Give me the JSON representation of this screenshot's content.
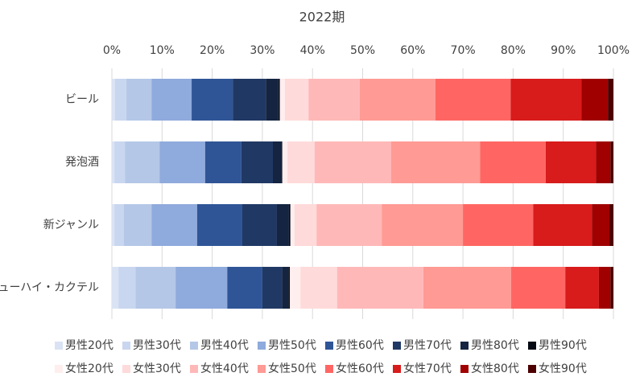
{
  "chart_data": {
    "type": "stacked_barh",
    "title": "2022期",
    "categories": [
      "ビール",
      "発泡酒",
      "新ジャンル",
      "チューハイ・カクテル"
    ],
    "xlim": [
      0,
      100
    ],
    "xticks": [
      {
        "value": 0,
        "label": "0%"
      },
      {
        "value": 10,
        "label": "10%"
      },
      {
        "value": 20,
        "label": "20%"
      },
      {
        "value": 30,
        "label": "30%"
      },
      {
        "value": 40,
        "label": "40%"
      },
      {
        "value": 50,
        "label": "50%"
      },
      {
        "value": 60,
        "label": "60%"
      },
      {
        "value": 70,
        "label": "70%"
      },
      {
        "value": 80,
        "label": "80%"
      },
      {
        "value": 90,
        "label": "90%"
      },
      {
        "value": 100,
        "label": "100%"
      }
    ],
    "grid": true,
    "legend": "bottom",
    "series": [
      {
        "name": "男性20代",
        "color": "#dae3f3",
        "values": [
          0.6,
          0.5,
          0.5,
          1.3
        ]
      },
      {
        "name": "男性30代",
        "color": "#c9d6ef",
        "values": [
          2.3,
          2.1,
          1.9,
          3.4
        ]
      },
      {
        "name": "男性40代",
        "color": "#b4c7e7",
        "values": [
          5.0,
          6.9,
          5.5,
          8.0
        ]
      },
      {
        "name": "男性50代",
        "color": "#8faadc",
        "values": [
          8.0,
          9.1,
          9.1,
          10.3
        ]
      },
      {
        "name": "男性60代",
        "color": "#2f5597",
        "values": [
          8.2,
          7.2,
          9.0,
          7.0
        ]
      },
      {
        "name": "男性70代",
        "color": "#203864",
        "values": [
          6.6,
          6.3,
          6.9,
          3.9
        ]
      },
      {
        "name": "男性80代",
        "color": "#142441",
        "values": [
          2.5,
          1.8,
          2.4,
          1.3
        ]
      },
      {
        "name": "男性90代",
        "color": "#050a14",
        "values": [
          0.3,
          0.1,
          0.3,
          0.3
        ]
      },
      {
        "name": "女性20代",
        "color": "#ffeeee",
        "values": [
          1.0,
          1.0,
          0.8,
          2.1
        ]
      },
      {
        "name": "女性30代",
        "color": "#ffdada",
        "values": [
          4.7,
          5.4,
          4.4,
          7.3
        ]
      },
      {
        "name": "女性40代",
        "color": "#ffb8b8",
        "values": [
          10.2,
          15.3,
          13.0,
          17.2
        ]
      },
      {
        "name": "女性50代",
        "color": "#ff9a94",
        "values": [
          15.1,
          17.7,
          16.2,
          17.5
        ]
      },
      {
        "name": "女性60代",
        "color": "#ff6663",
        "values": [
          15.0,
          13.1,
          14.0,
          10.8
        ]
      },
      {
        "name": "女性70代",
        "color": "#d81b1b",
        "values": [
          14.1,
          10.0,
          11.7,
          6.7
        ]
      },
      {
        "name": "女性80代",
        "color": "#a00000",
        "values": [
          5.3,
          2.9,
          3.5,
          2.3
        ]
      },
      {
        "name": "女性90代",
        "color": "#4d0000",
        "values": [
          1.1,
          0.6,
          0.8,
          0.6
        ]
      }
    ]
  }
}
